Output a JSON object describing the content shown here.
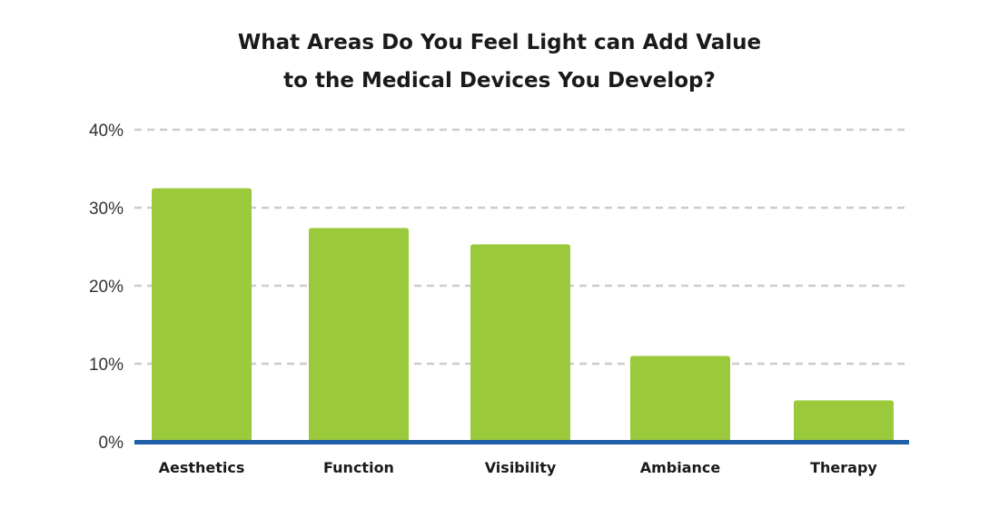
{
  "chart_data": {
    "type": "bar",
    "title_lines": [
      "What Areas Do You Feel Light can Add Value",
      "to the Medical Devices You Develop?"
    ],
    "categories": [
      "Aesthetics",
      "Function",
      "Visibility",
      "Ambiance",
      "Therapy"
    ],
    "values": [
      32.5,
      27.4,
      25.3,
      11.0,
      5.3
    ],
    "ylim": [
      0,
      40
    ],
    "yticks": [
      0,
      10,
      20,
      30,
      40
    ],
    "ytick_labels": [
      "0%",
      "10%",
      "20%",
      "30%",
      "40%"
    ],
    "grid": true,
    "grid_style": "dashed",
    "bar_color": "#9ac93c",
    "baseline_color": "#1f5fa8",
    "grid_color": "#cccccc"
  }
}
